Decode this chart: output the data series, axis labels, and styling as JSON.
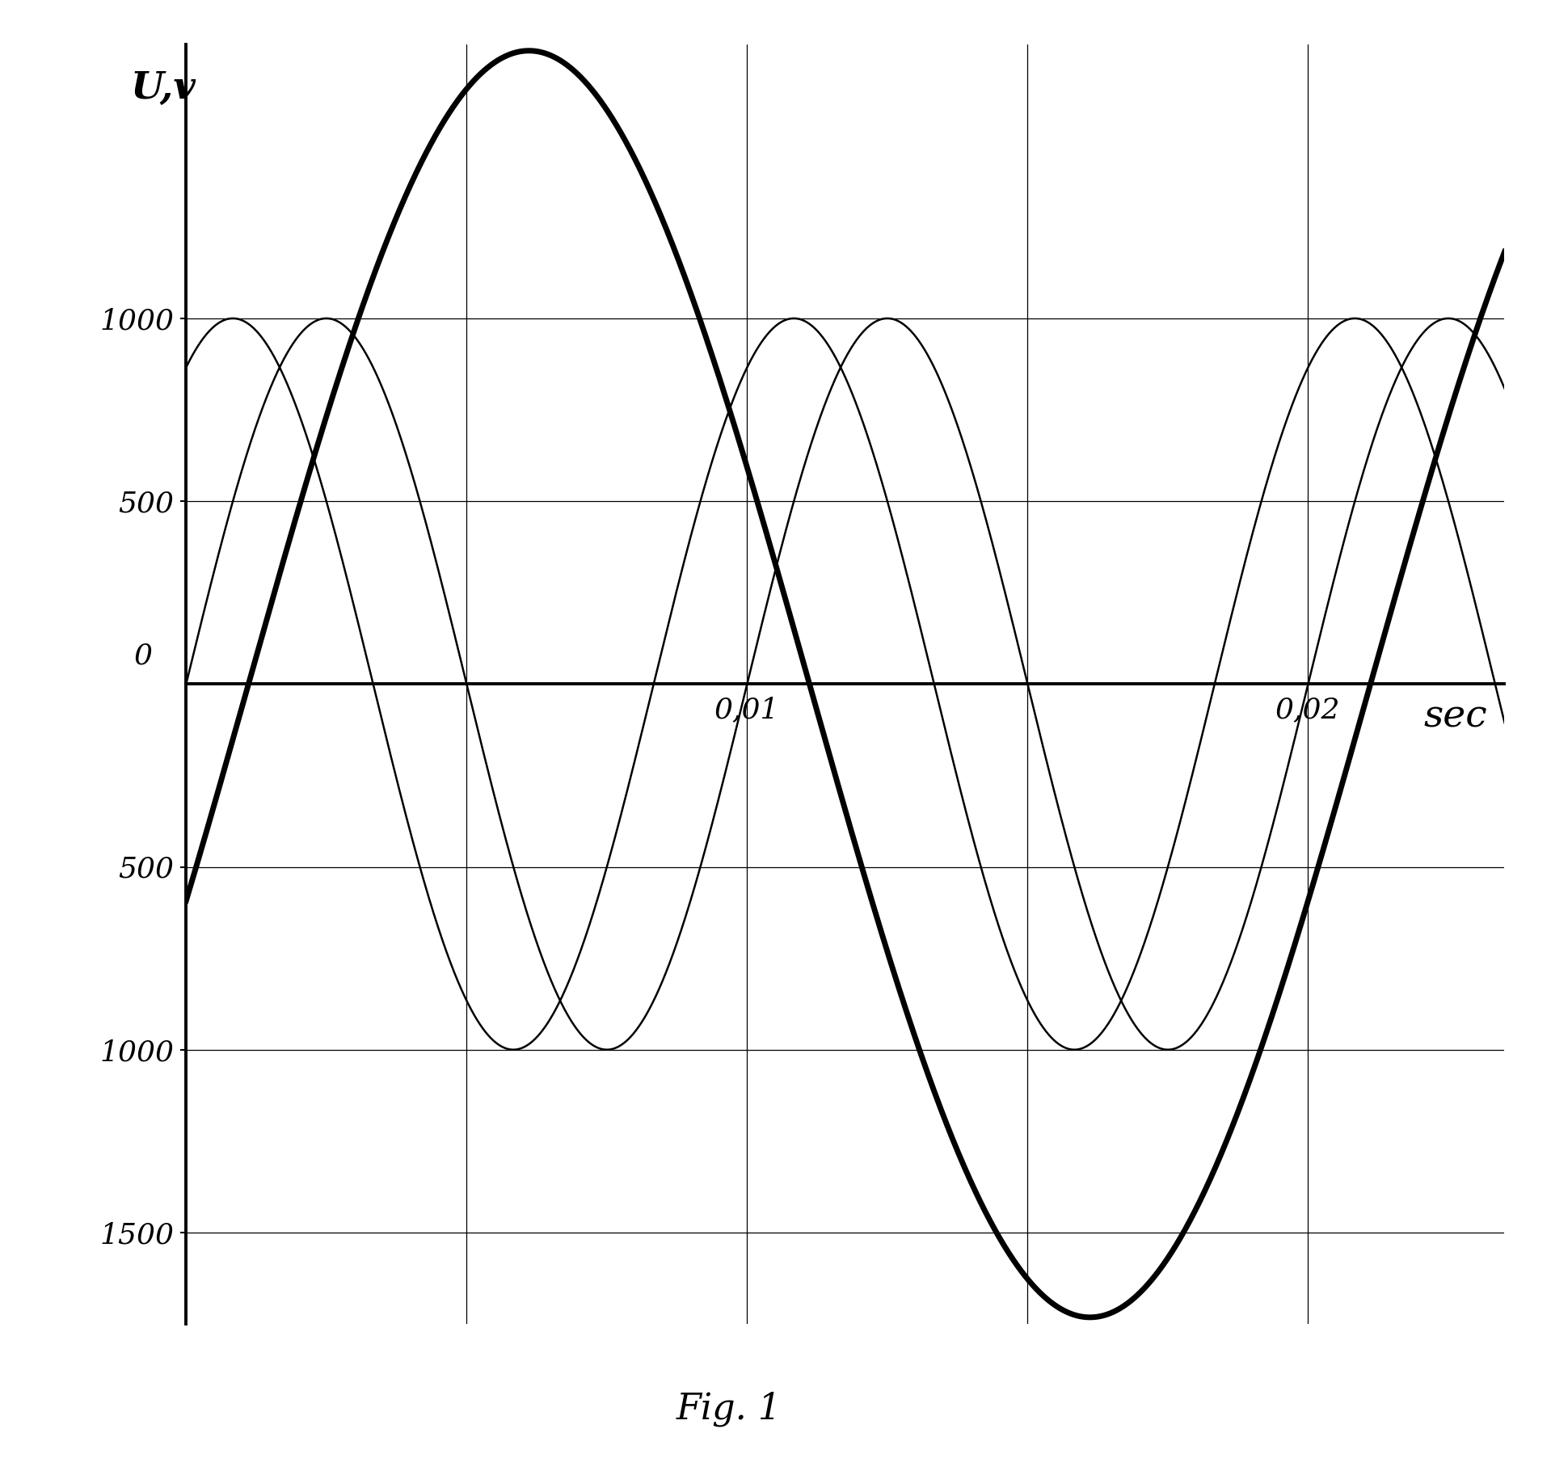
{
  "title": "Fig. 1",
  "ylabel": "U,v",
  "xlabel": "sec",
  "xtick_positions": [
    0.01,
    0.02
  ],
  "xtick_labels": [
    "0,01",
    "0,02"
  ],
  "thin_curve1_amplitude": 1000,
  "thin_curve1_freq": 100,
  "thin_curve1_phase_deg": 0,
  "thin_curve2_amplitude": 1000,
  "thin_curve2_freq": 100,
  "thin_curve2_phase_deg": 60,
  "thick_curve_amplitude": 1732,
  "thick_curve_freq": 50,
  "thick_curve_phase_deg": -20,
  "xmin": 0.0,
  "xmax": 0.0235,
  "ymin": -1750,
  "ymax": 1750,
  "background_color": "#ffffff",
  "line_color_thin": "#000000",
  "line_color_thick": "#000000",
  "title_fontsize": 32,
  "label_fontsize": 34,
  "tick_fontsize": 26
}
